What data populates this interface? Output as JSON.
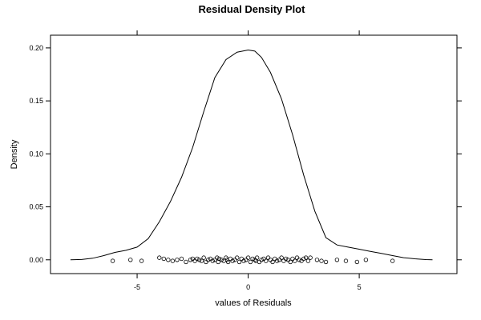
{
  "chart_data": {
    "type": "line",
    "title": "Residual Density Plot",
    "xlabel": "values of Residuals",
    "ylabel": "Density",
    "xlim": [
      -8.9,
      9.4
    ],
    "ylim": [
      -0.013,
      0.212
    ],
    "x_ticks": [
      -5,
      0,
      5
    ],
    "x_tick_labels": [
      "-5",
      "0",
      "5"
    ],
    "y_ticks": [
      0.0,
      0.05,
      0.1,
      0.15,
      0.2
    ],
    "y_tick_labels": [
      "0.00",
      "0.05",
      "0.10",
      "0.15",
      "0.20"
    ],
    "grid": false,
    "legend": "none",
    "series": [
      {
        "kind": "density-curve",
        "color": "#000000",
        "x": [
          -8.0,
          -7.5,
          -7.0,
          -6.5,
          -6.0,
          -5.5,
          -5.0,
          -4.5,
          -4.0,
          -3.5,
          -3.0,
          -2.5,
          -2.0,
          -1.5,
          -1.0,
          -0.5,
          0.0,
          0.3,
          0.6,
          1.0,
          1.5,
          2.0,
          2.5,
          3.0,
          3.5,
          4.0,
          4.5,
          5.0,
          5.5,
          6.0,
          6.5,
          7.0,
          7.5,
          8.0,
          8.3
        ],
        "y": [
          0.0,
          0.0003,
          0.0015,
          0.004,
          0.007,
          0.009,
          0.012,
          0.02,
          0.036,
          0.055,
          0.078,
          0.106,
          0.14,
          0.172,
          0.189,
          0.196,
          0.198,
          0.197,
          0.191,
          0.177,
          0.152,
          0.118,
          0.08,
          0.046,
          0.021,
          0.014,
          0.012,
          0.01,
          0.008,
          0.006,
          0.004,
          0.002,
          0.001,
          0.0002,
          0.0
        ]
      },
      {
        "kind": "rug-points",
        "marker": "open-circle",
        "color": "#000000",
        "x": [
          -6.1,
          -5.3,
          -4.8,
          -4.0,
          -3.8,
          -3.6,
          -3.4,
          -3.2,
          -3.0,
          -2.8,
          -2.6,
          -2.5,
          -2.4,
          -2.3,
          -2.2,
          -2.1,
          -2.0,
          -1.9,
          -1.8,
          -1.7,
          -1.6,
          -1.5,
          -1.4,
          -1.35,
          -1.3,
          -1.2,
          -1.1,
          -1.0,
          -0.95,
          -0.9,
          -0.8,
          -0.7,
          -0.6,
          -0.5,
          -0.4,
          -0.3,
          -0.2,
          -0.1,
          0.0,
          0.1,
          0.2,
          0.3,
          0.35,
          0.4,
          0.5,
          0.6,
          0.7,
          0.8,
          0.9,
          1.0,
          1.1,
          1.2,
          1.3,
          1.4,
          1.5,
          1.6,
          1.7,
          1.8,
          1.9,
          2.0,
          2.1,
          2.2,
          2.3,
          2.4,
          2.5,
          2.6,
          2.7,
          2.8,
          3.1,
          3.3,
          3.5,
          4.0,
          4.4,
          4.9,
          5.3,
          6.5
        ],
        "y": [
          -0.001,
          0.0,
          -0.001,
          0.002,
          0.001,
          0.0,
          -0.001,
          0.0,
          0.001,
          -0.002,
          0.0,
          0.001,
          -0.001,
          0.001,
          0.0,
          -0.001,
          0.002,
          -0.002,
          0.0,
          0.001,
          -0.001,
          0.0,
          0.002,
          -0.002,
          0.001,
          0.0,
          -0.001,
          0.002,
          0.0,
          -0.002,
          0.001,
          -0.001,
          0.0,
          0.002,
          -0.002,
          0.001,
          -0.001,
          0.0,
          0.002,
          -0.002,
          0.001,
          0.0,
          -0.001,
          0.002,
          -0.002,
          0.0,
          0.001,
          -0.001,
          0.002,
          0.0,
          -0.002,
          0.001,
          -0.001,
          0.0,
          0.002,
          -0.001,
          0.001,
          0.0,
          -0.002,
          0.001,
          -0.001,
          0.002,
          0.0,
          -0.001,
          0.001,
          0.002,
          -0.001,
          0.002,
          0.0,
          -0.001,
          -0.002,
          0.0,
          -0.001,
          -0.002,
          0.0,
          -0.001
        ]
      }
    ]
  }
}
